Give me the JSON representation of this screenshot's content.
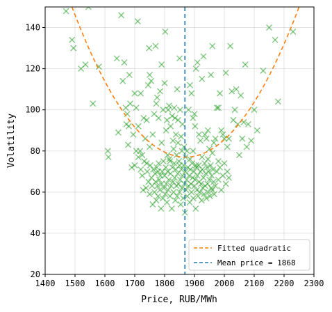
{
  "chart_data": {
    "type": "scatter",
    "xlabel": "Price, RUB/MWh",
    "ylabel": "Volatility",
    "xlim": [
      1400,
      2300
    ],
    "ylim": [
      20,
      150
    ],
    "xticks": [
      "1400",
      "1500",
      "1600",
      "1700",
      "1800",
      "1900",
      "2000",
      "2100",
      "2200",
      "2300"
    ],
    "yticks": [
      "20",
      "40",
      "60",
      "80",
      "100",
      "120",
      "140"
    ],
    "grid": true,
    "legend_position": "bottom-right",
    "colors": {
      "points": "#2ca02c",
      "fit": "#ff7f0e",
      "mean": "#1f77b4"
    },
    "series": [
      {
        "marker": "x",
        "points": [
          [
            1470,
            148
          ],
          [
            1490,
            134
          ],
          [
            1495,
            130
          ],
          [
            1520,
            120
          ],
          [
            1535,
            122
          ],
          [
            1545,
            150
          ],
          [
            1560,
            103
          ],
          [
            1580,
            121
          ],
          [
            1610,
            80
          ],
          [
            1612,
            77
          ],
          [
            1640,
            125
          ],
          [
            1645,
            89
          ],
          [
            1655,
            146
          ],
          [
            1660,
            114
          ],
          [
            1665,
            123
          ],
          [
            1670,
            101
          ],
          [
            1672,
            93
          ],
          [
            1675,
            98
          ],
          [
            1678,
            83
          ],
          [
            1680,
            92
          ],
          [
            1682,
            117
          ],
          [
            1685,
            103
          ],
          [
            1690,
            72
          ],
          [
            1695,
            88
          ],
          [
            1700,
            108
          ],
          [
            1705,
            101
          ],
          [
            1710,
            143
          ],
          [
            1712,
            92
          ],
          [
            1718,
            80
          ],
          [
            1720,
            108
          ],
          [
            1725,
            78
          ],
          [
            1730,
            96
          ],
          [
            1735,
            86
          ],
          [
            1740,
            95
          ],
          [
            1745,
            112
          ],
          [
            1748,
            130
          ],
          [
            1750,
            117
          ],
          [
            1755,
            114
          ],
          [
            1760,
            88
          ],
          [
            1765,
            98
          ],
          [
            1770,
            131
          ],
          [
            1772,
            103
          ],
          [
            1775,
            106
          ],
          [
            1778,
            70
          ],
          [
            1780,
            96
          ],
          [
            1785,
            109
          ],
          [
            1790,
            122
          ],
          [
            1795,
            100
          ],
          [
            1800,
            113
          ],
          [
            1802,
            138
          ],
          [
            1805,
            90
          ],
          [
            1808,
            95
          ],
          [
            1812,
            100
          ],
          [
            1815,
            102
          ],
          [
            1818,
            75
          ],
          [
            1820,
            92
          ],
          [
            1825,
            97
          ],
          [
            1828,
            85
          ],
          [
            1832,
            101
          ],
          [
            1835,
            96
          ],
          [
            1838,
            88
          ],
          [
            1840,
            78
          ],
          [
            1842,
            110
          ],
          [
            1845,
            95
          ],
          [
            1850,
            125
          ],
          [
            1852,
            100
          ],
          [
            1855,
            87
          ],
          [
            1858,
            80
          ],
          [
            1860,
            93
          ],
          [
            1880,
            100
          ],
          [
            1885,
            112
          ],
          [
            1890,
            108
          ],
          [
            1895,
            96
          ],
          [
            1900,
            98
          ],
          [
            1902,
            92
          ],
          [
            1905,
            120
          ],
          [
            1910,
            123
          ],
          [
            1915,
            88
          ],
          [
            1920,
            85
          ],
          [
            1925,
            115
          ],
          [
            1930,
            126
          ],
          [
            1935,
            88
          ],
          [
            1940,
            86
          ],
          [
            1945,
            90
          ],
          [
            1950,
            81
          ],
          [
            1955,
            117
          ],
          [
            1960,
            131
          ],
          [
            1965,
            84
          ],
          [
            1970,
            86
          ],
          [
            1975,
            101
          ],
          [
            1980,
            101
          ],
          [
            1985,
            108
          ],
          [
            1990,
            90
          ],
          [
            1995,
            88
          ],
          [
            2000,
            86
          ],
          [
            2005,
            118
          ],
          [
            2010,
            82
          ],
          [
            2015,
            86
          ],
          [
            2020,
            131
          ],
          [
            2025,
            109
          ],
          [
            2030,
            95
          ],
          [
            2035,
            100
          ],
          [
            2040,
            110
          ],
          [
            2045,
            93
          ],
          [
            2050,
            78
          ],
          [
            2055,
            107
          ],
          [
            2060,
            86
          ],
          [
            2065,
            94
          ],
          [
            2070,
            122
          ],
          [
            2075,
            82
          ],
          [
            2080,
            93
          ],
          [
            2090,
            85
          ],
          [
            2100,
            100
          ],
          [
            2110,
            90
          ],
          [
            2130,
            119
          ],
          [
            2150,
            140
          ],
          [
            2170,
            134
          ],
          [
            2180,
            104
          ],
          [
            2230,
            138
          ],
          [
            1700,
            73
          ],
          [
            1705,
            80
          ],
          [
            1712,
            77
          ],
          [
            1720,
            71
          ],
          [
            1725,
            68
          ],
          [
            1728,
            61
          ],
          [
            1732,
            75
          ],
          [
            1738,
            62
          ],
          [
            1742,
            70
          ],
          [
            1746,
            65
          ],
          [
            1750,
            59
          ],
          [
            1752,
            73
          ],
          [
            1756,
            67
          ],
          [
            1758,
            63
          ],
          [
            1760,
            54
          ],
          [
            1762,
            71
          ],
          [
            1766,
            60
          ],
          [
            1768,
            69
          ],
          [
            1770,
            65
          ],
          [
            1772,
            56
          ],
          [
            1774,
            72
          ],
          [
            1776,
            63
          ],
          [
            1778,
            58
          ],
          [
            1780,
            74
          ],
          [
            1782,
            66
          ],
          [
            1784,
            61
          ],
          [
            1786,
            68
          ],
          [
            1788,
            52
          ],
          [
            1790,
            64
          ],
          [
            1792,
            70
          ],
          [
            1794,
            57
          ],
          [
            1796,
            75
          ],
          [
            1798,
            62
          ],
          [
            1800,
            68
          ],
          [
            1802,
            59
          ],
          [
            1804,
            72
          ],
          [
            1806,
            64
          ],
          [
            1808,
            55
          ],
          [
            1810,
            70
          ],
          [
            1812,
            61
          ],
          [
            1814,
            66
          ],
          [
            1816,
            76
          ],
          [
            1818,
            58
          ],
          [
            1820,
            69
          ],
          [
            1822,
            63
          ],
          [
            1824,
            52
          ],
          [
            1826,
            72
          ],
          [
            1828,
            65
          ],
          [
            1830,
            60
          ],
          [
            1832,
            74
          ],
          [
            1834,
            67
          ],
          [
            1836,
            56
          ],
          [
            1838,
            71
          ],
          [
            1840,
            63
          ],
          [
            1842,
            58
          ],
          [
            1844,
            69
          ],
          [
            1846,
            64
          ],
          [
            1848,
            75
          ],
          [
            1850,
            60
          ],
          [
            1852,
            66
          ],
          [
            1854,
            54
          ],
          [
            1856,
            71
          ],
          [
            1858,
            62
          ],
          [
            1860,
            68
          ],
          [
            1862,
            57
          ],
          [
            1864,
            73
          ],
          [
            1866,
            64
          ],
          [
            1868,
            50
          ],
          [
            1870,
            70
          ],
          [
            1872,
            61
          ],
          [
            1874,
            66
          ],
          [
            1876,
            58
          ],
          [
            1878,
            72
          ],
          [
            1880,
            63
          ],
          [
            1882,
            68
          ],
          [
            1884,
            55
          ],
          [
            1886,
            71
          ],
          [
            1888,
            64
          ],
          [
            1890,
            60
          ],
          [
            1892,
            74
          ],
          [
            1894,
            67
          ],
          [
            1896,
            57
          ],
          [
            1898,
            70
          ],
          [
            1900,
            63
          ],
          [
            1902,
            66
          ],
          [
            1904,
            52
          ],
          [
            1906,
            72
          ],
          [
            1908,
            61
          ],
          [
            1910,
            68
          ],
          [
            1912,
            58
          ],
          [
            1914,
            73
          ],
          [
            1916,
            65
          ],
          [
            1918,
            60
          ],
          [
            1920,
            70
          ],
          [
            1922,
            64
          ],
          [
            1924,
            56
          ],
          [
            1926,
            71
          ],
          [
            1928,
            62
          ],
          [
            1930,
            67
          ],
          [
            1932,
            59
          ],
          [
            1934,
            74
          ],
          [
            1936,
            63
          ],
          [
            1938,
            69
          ],
          [
            1940,
            57
          ],
          [
            1942,
            72
          ],
          [
            1944,
            64
          ],
          [
            1946,
            60
          ],
          [
            1948,
            70
          ],
          [
            1950,
            66
          ],
          [
            1952,
            58
          ],
          [
            1954,
            73
          ],
          [
            1956,
            62
          ],
          [
            1958,
            68
          ],
          [
            1960,
            61
          ],
          [
            1962,
            71
          ],
          [
            1964,
            65
          ],
          [
            1966,
            59
          ],
          [
            1970,
            63
          ],
          [
            1975,
            70
          ],
          [
            1980,
            66
          ],
          [
            1985,
            72
          ],
          [
            1990,
            61
          ],
          [
            1995,
            68
          ],
          [
            2000,
            74
          ],
          [
            2005,
            64
          ],
          [
            2010,
            70
          ],
          [
            2015,
            67
          ],
          [
            1740,
            74
          ],
          [
            1810,
            78
          ],
          [
            1830,
            81
          ],
          [
            1850,
            73
          ],
          [
            1870,
            77
          ],
          [
            1885,
            76
          ],
          [
            1895,
            80
          ],
          [
            1905,
            73
          ],
          [
            1925,
            77
          ],
          [
            1945,
            76
          ],
          [
            1960,
            79
          ],
          [
            1845,
            84
          ],
          [
            1865,
            82
          ],
          [
            1875,
            80
          ],
          [
            1750,
            82
          ],
          [
            1790,
            84
          ],
          [
            1980,
            75
          ]
        ]
      },
      {
        "name": "Fitted quadratic",
        "kind": "line",
        "style": "dashed",
        "quadratic": {
          "a": 0.000505,
          "vertex_x": 1870,
          "vertex_y": 77
        }
      },
      {
        "name": "Mean price = 1868",
        "kind": "vline",
        "style": "dashed",
        "x": 1868
      }
    ]
  }
}
